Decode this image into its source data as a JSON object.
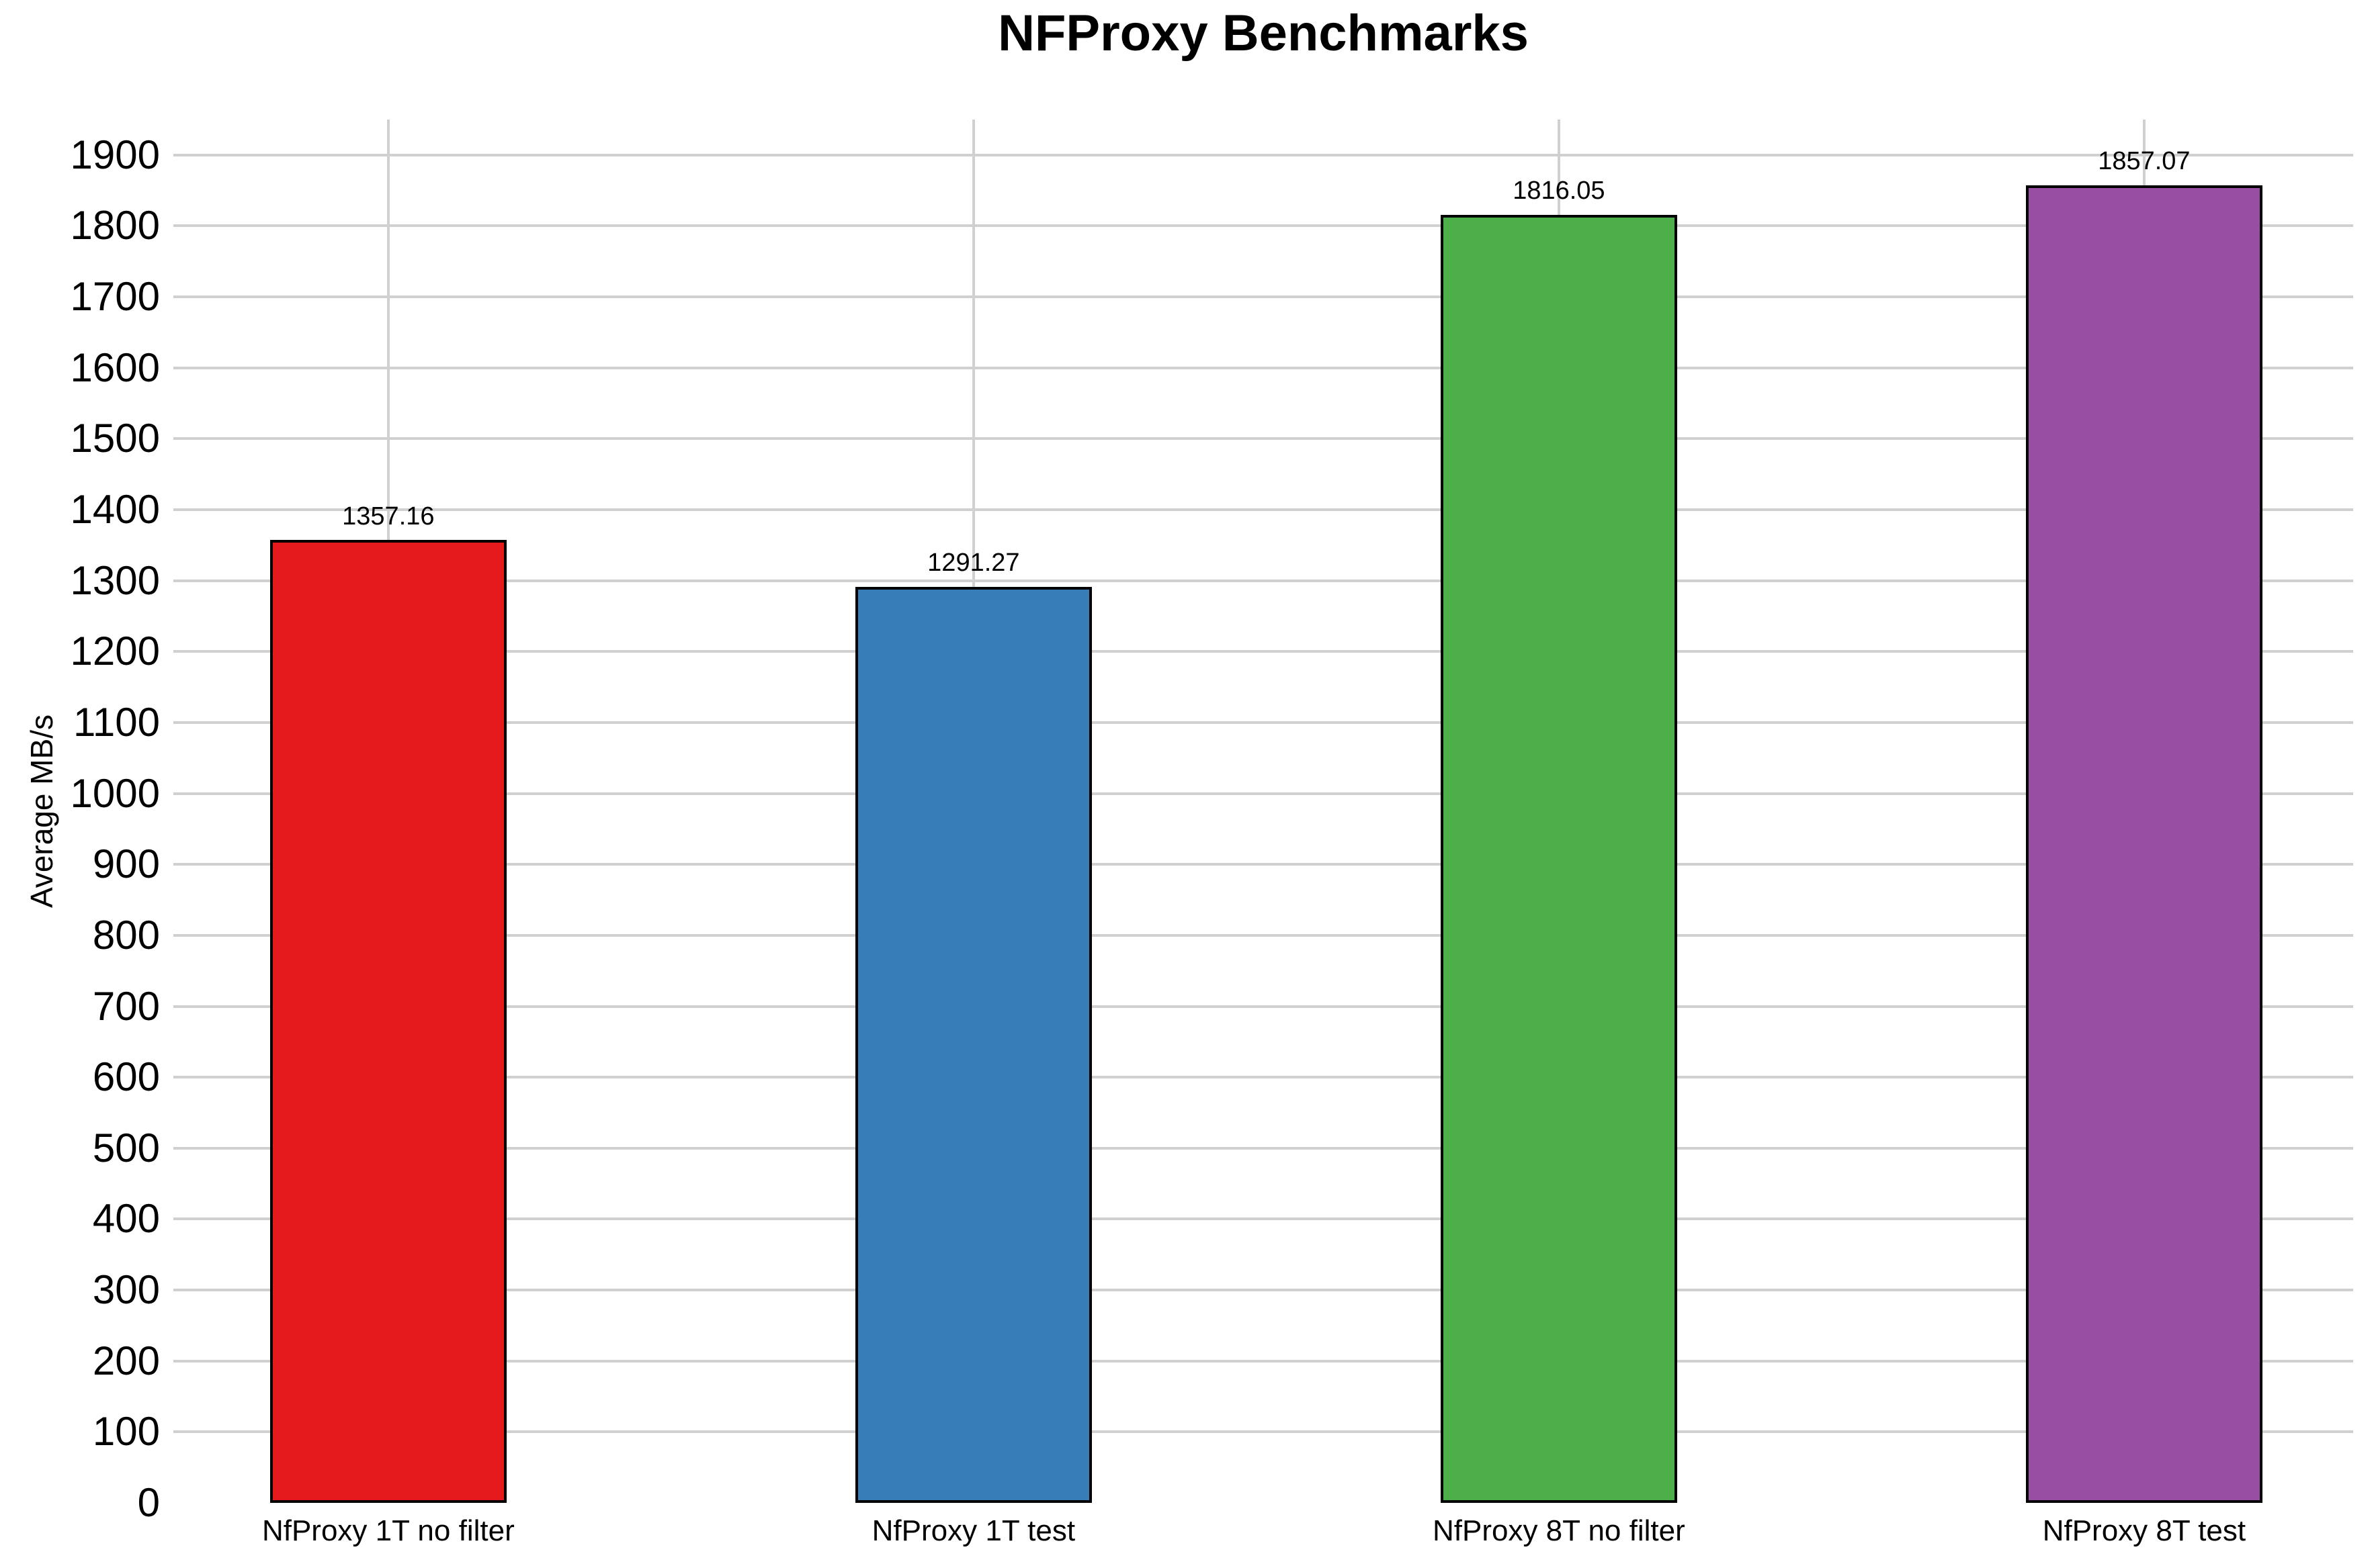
{
  "chart_data": {
    "type": "bar",
    "title": "NFProxy Benchmarks",
    "ylabel": "Average MB/s",
    "xlabel": "",
    "categories": [
      "NfProxy 1T no filter",
      "NfProxy 1T test",
      "NfProxy 8T no filter",
      "NfProxy 8T test"
    ],
    "values": [
      1357.16,
      1291.27,
      1816.05,
      1857.07
    ],
    "bar_labels": [
      "1357.16",
      "1291.27",
      "1816.05",
      "1857.07"
    ],
    "bar_colors": [
      "#e41a1c",
      "#377eb8",
      "#4daf4a",
      "#984ea3"
    ],
    "bar_edge_color": "#000000",
    "yticks": [
      0,
      100,
      200,
      300,
      400,
      500,
      600,
      700,
      800,
      900,
      1000,
      1100,
      1200,
      1300,
      1400,
      1500,
      1600,
      1700,
      1800,
      1900
    ],
    "ylim": [
      0,
      1950
    ],
    "grid": true,
    "gridline_color": "#d0d0d0",
    "background_color": "#ffffff",
    "legend_position": "none"
  }
}
